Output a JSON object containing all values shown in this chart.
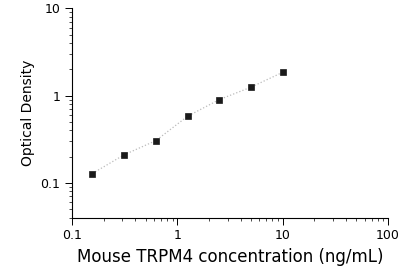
{
  "x": [
    0.156,
    0.3125,
    0.625,
    1.25,
    2.5,
    5.0,
    10.0
  ],
  "y": [
    0.128,
    0.21,
    0.305,
    0.58,
    0.9,
    1.25,
    1.85
  ],
  "xlabel": "Mouse TRPM4 concentration (ng/mL)",
  "ylabel": "Optical Density",
  "xlim": [
    0.1,
    100
  ],
  "ylim": [
    0.04,
    10
  ],
  "line_color": "#bbbbbb",
  "marker_color": "#1a1a1a",
  "marker": "s",
  "marker_size": 5,
  "line_width": 0.9,
  "line_style": ":",
  "xlabel_fontsize": 12,
  "ylabel_fontsize": 10,
  "tick_fontsize": 9,
  "background_color": "#ffffff",
  "figsize": [
    4.0,
    2.79
  ],
  "dpi": 100
}
